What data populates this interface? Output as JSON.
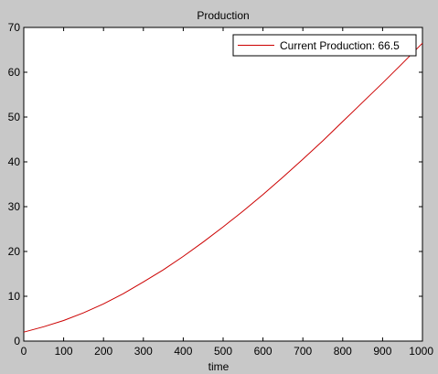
{
  "chart_data": {
    "type": "line",
    "title": "Production",
    "xlabel": "time",
    "ylabel": "",
    "xlim": [
      0,
      1000
    ],
    "ylim": [
      0,
      70
    ],
    "xticks": [
      0,
      100,
      200,
      300,
      400,
      500,
      600,
      700,
      800,
      900,
      1000
    ],
    "yticks": [
      0,
      10,
      20,
      30,
      40,
      50,
      60,
      70
    ],
    "grid": false,
    "legend_position": "top-right",
    "series": [
      {
        "name": "Current Production: 66.5",
        "color": "#cc0000",
        "x": [
          0,
          50,
          100,
          150,
          200,
          250,
          300,
          350,
          400,
          450,
          500,
          550,
          600,
          650,
          700,
          750,
          800,
          850,
          900,
          950,
          1000
        ],
        "y": [
          2,
          3.2,
          4.6,
          6.3,
          8.3,
          10.6,
          13.2,
          15.9,
          18.9,
          22.1,
          25.5,
          29.0,
          32.7,
          36.6,
          40.6,
          44.7,
          49.0,
          53.3,
          57.6,
          62.0,
          66.5
        ]
      }
    ]
  }
}
